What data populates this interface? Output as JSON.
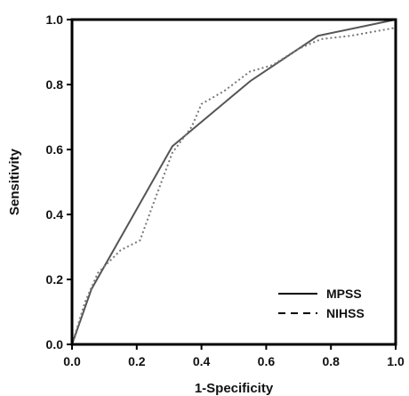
{
  "chart_data": {
    "type": "line",
    "xlabel": "1-Specificity",
    "ylabel": "Sensitivity",
    "xlim": [
      0,
      1
    ],
    "ylim": [
      0,
      1
    ],
    "xticks": [
      "0.0",
      "0.2",
      "0.4",
      "0.6",
      "0.8",
      "1.0"
    ],
    "yticks": [
      "0.0",
      "0.2",
      "0.4",
      "0.6",
      "0.8",
      "1.0"
    ],
    "grid": false,
    "legend_position": "bottom-right",
    "series": [
      {
        "name": "MPSS",
        "style": "solid",
        "color": "#555555",
        "x": [
          0.0,
          0.06,
          0.31,
          0.55,
          0.76,
          1.0
        ],
        "y": [
          0.0,
          0.17,
          0.61,
          0.81,
          0.95,
          1.0
        ]
      },
      {
        "name": "NIHSS",
        "style": "dotted",
        "color": "#777777",
        "x": [
          0.0,
          0.04,
          0.08,
          0.15,
          0.21,
          0.25,
          0.31,
          0.37,
          0.4,
          0.47,
          0.55,
          0.62,
          0.7,
          0.77,
          0.86,
          1.0
        ],
        "y": [
          0.0,
          0.13,
          0.22,
          0.29,
          0.32,
          0.43,
          0.59,
          0.67,
          0.74,
          0.78,
          0.84,
          0.86,
          0.91,
          0.94,
          0.95,
          0.975
        ]
      }
    ]
  }
}
